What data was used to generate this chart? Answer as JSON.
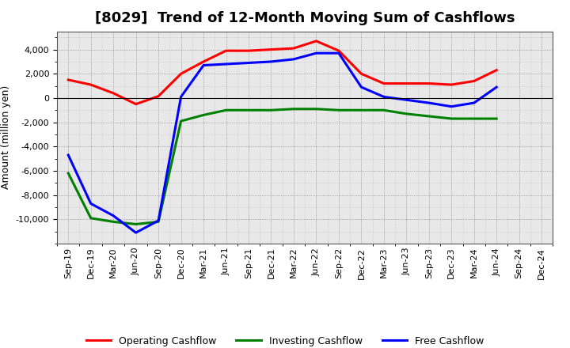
{
  "title": "[8029]  Trend of 12-Month Moving Sum of Cashflows",
  "ylabel": "Amount (million yen)",
  "background_color": "#ffffff",
  "plot_bg_color": "#f0f0f0",
  "grid_color": "#999999",
  "x_labels": [
    "Sep-19",
    "Dec-19",
    "Mar-20",
    "Jun-20",
    "Sep-20",
    "Dec-20",
    "Mar-21",
    "Jun-21",
    "Sep-21",
    "Dec-21",
    "Mar-22",
    "Jun-22",
    "Sep-22",
    "Dec-22",
    "Mar-23",
    "Jun-23",
    "Sep-23",
    "Dec-23",
    "Mar-24",
    "Jun-24",
    "Sep-24",
    "Dec-24"
  ],
  "operating_cashflow": [
    1500,
    1100,
    400,
    -500,
    150,
    2000,
    3000,
    3900,
    3900,
    4000,
    4100,
    4700,
    3900,
    2000,
    1200,
    1200,
    1200,
    1100,
    1400,
    2300,
    null,
    null
  ],
  "investing_cashflow": [
    -6200,
    -9900,
    -10200,
    -10400,
    -10200,
    -1900,
    -1400,
    -1000,
    -1000,
    -1000,
    -900,
    -900,
    -1000,
    -1000,
    -1000,
    -1300,
    -1500,
    -1700,
    -1700,
    -1700,
    null,
    null
  ],
  "free_cashflow": [
    -4700,
    -8700,
    -9700,
    -11100,
    -10100,
    100,
    2700,
    2800,
    2900,
    3000,
    3200,
    3700,
    3700,
    900,
    100,
    -150,
    -400,
    -700,
    -400,
    900,
    null,
    null
  ],
  "operating_color": "#ff0000",
  "investing_color": "#008000",
  "free_color": "#0000ff",
  "ylim": [
    -12000,
    5500
  ],
  "yticks": [
    -10000,
    -8000,
    -6000,
    -4000,
    -2000,
    0,
    2000,
    4000
  ],
  "line_width": 2.2,
  "title_fontsize": 13,
  "legend_fontsize": 9,
  "tick_fontsize": 8
}
